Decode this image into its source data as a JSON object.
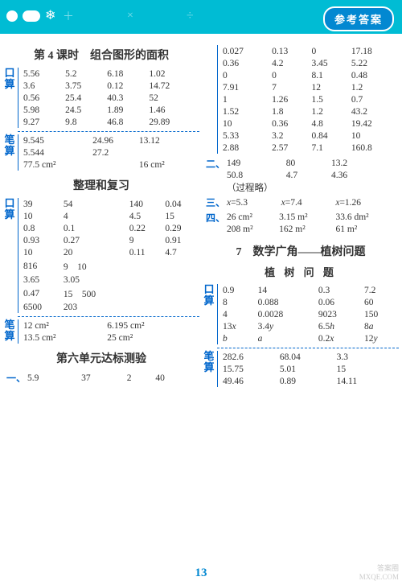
{
  "header": {
    "badge": "参考答案"
  },
  "pagenum": "13",
  "watermark": {
    "l1": "答案圈",
    "l2": "MXQE.COM"
  },
  "left": {
    "sec1": {
      "title": "第 4 课时　组合图形的面积",
      "kousuan": [
        [
          "5.56",
          "5.2",
          "6.18",
          "1.02"
        ],
        [
          "3.6",
          "3.75",
          "0.12",
          "14.72"
        ],
        [
          "0.56",
          "25.4",
          "40.3",
          "52"
        ],
        [
          "5.98",
          "24.5",
          "1.89",
          "1.46"
        ],
        [
          "9.27",
          "9.8",
          "46.8",
          "29.89"
        ]
      ],
      "bisuan": [
        [
          "9.545",
          "24.96",
          "13.12",
          ""
        ],
        [
          "5.544",
          "27.2",
          "",
          ""
        ],
        [
          "77.5 cm²",
          "",
          "16 cm²",
          ""
        ]
      ]
    },
    "sec2": {
      "title": "整理和复习",
      "kousuan": [
        [
          "39",
          "54",
          "140",
          "0.04"
        ],
        [
          "10",
          "4",
          "4.5",
          "15"
        ],
        [
          "0.8",
          "0.1",
          "0.22",
          "0.29"
        ],
        [
          "0.93",
          "0.27",
          "9",
          "0.91"
        ],
        [
          "10",
          "20",
          "0.11",
          "4.7"
        ],
        [
          "816",
          "9　10",
          "",
          ""
        ],
        [
          "3.65",
          "3.05",
          "",
          ""
        ],
        [
          "0.47",
          "15　500",
          "",
          ""
        ],
        [
          "6500",
          "203",
          "",
          ""
        ]
      ],
      "bisuan": [
        [
          "12 cm²",
          "",
          "6.195 cm²",
          ""
        ],
        [
          "13.5 cm²",
          "",
          "25 cm²",
          ""
        ]
      ]
    },
    "sec3": {
      "title": "第六单元达标测验",
      "row1": {
        "label": "一、",
        "cells": [
          "5.9",
          "37",
          "2",
          "40"
        ]
      }
    }
  },
  "right": {
    "grid": [
      [
        "0.027",
        "0.13",
        "0",
        "17.18"
      ],
      [
        "0.36",
        "4.2",
        "3.45",
        "5.22"
      ],
      [
        "0",
        "0",
        "8.1",
        "0.48"
      ],
      [
        "7.91",
        "7",
        "12",
        "1.2"
      ],
      [
        "1",
        "1.26",
        "1.5",
        "0.7"
      ],
      [
        "1.52",
        "1.8",
        "1.2",
        "43.2"
      ],
      [
        "10",
        "0.36",
        "4.8",
        "19.42"
      ],
      [
        "5.33",
        "3.2",
        "0.84",
        "10"
      ],
      [
        "2.88",
        "2.57",
        "7.1",
        "160.8"
      ]
    ],
    "two": {
      "label": "二、",
      "rows": [
        [
          "149",
          "80",
          "13.2",
          ""
        ],
        [
          "50.8",
          "4.7",
          "4.36",
          ""
        ]
      ],
      "note": "（过程略）"
    },
    "three": {
      "label": "三、",
      "row": [
        "x=5.3",
        "x=7.4",
        "x=1.26"
      ]
    },
    "four": {
      "label": "四、",
      "rows": [
        [
          "26 cm²",
          "3.15 m²",
          "33.6 dm²"
        ],
        [
          "208 m²",
          "162 m²",
          "61 m²"
        ]
      ]
    },
    "sec7": {
      "title": "7　数学广角——植树问题",
      "subtitle": "植 树 问 题",
      "kousuan": [
        [
          "0.9",
          "14",
          "0.3",
          "7.2"
        ],
        [
          "8",
          "0.088",
          "0.06",
          "60"
        ],
        [
          "4",
          "0.0028",
          "9023",
          "150"
        ],
        [
          "13x",
          "3.4y",
          "6.5h",
          "8a"
        ],
        [
          "b",
          "a",
          "0.2x",
          "12y"
        ]
      ],
      "bisuan": [
        [
          "282.6",
          "68.04",
          "3.3",
          ""
        ],
        [
          "15.75",
          "5.01",
          "15",
          ""
        ],
        [
          "49.46",
          "0.89",
          "14.11",
          ""
        ]
      ]
    }
  }
}
